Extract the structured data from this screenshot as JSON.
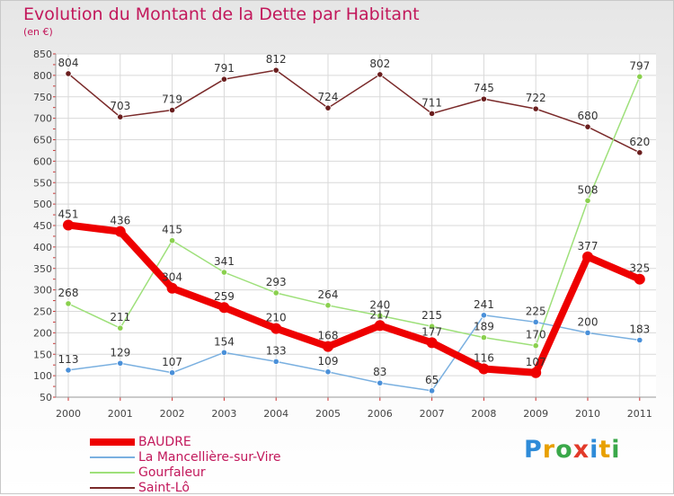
{
  "title": "Evolution du Montant de la Dette par Habitant",
  "subtitle": "(en €)",
  "logo": {
    "text": "Proxiti",
    "colors": [
      "#2e8bd8",
      "#e8a000",
      "#3aa84a",
      "#e23a2a",
      "#2e8bd8",
      "#e8a000",
      "#3aa84a"
    ]
  },
  "chart_data": {
    "type": "line",
    "x": [
      "2000",
      "2001",
      "2002",
      "2003",
      "2004",
      "2005",
      "2006",
      "2007",
      "2008",
      "2009",
      "2010",
      "2011"
    ],
    "ylim": [
      50,
      850
    ],
    "yticks": [
      50,
      100,
      150,
      200,
      250,
      300,
      350,
      400,
      450,
      500,
      550,
      600,
      650,
      700,
      750,
      800,
      850
    ],
    "grid": true,
    "legend_position": "bottom-left",
    "series": [
      {
        "name": "Saint-Lô",
        "color": "#7a2a2a",
        "marker_color": "#6a1e1e",
        "width": 1.5,
        "values": [
          804,
          703,
          719,
          791,
          812,
          724,
          802,
          711,
          745,
          722,
          680,
          620
        ],
        "labels": [
          "804",
          "703",
          "719",
          "791",
          "812",
          "724",
          "802",
          "711",
          "745",
          "722",
          "680",
          "620"
        ]
      },
      {
        "name": "Gourfaleur",
        "color": "#9ee07a",
        "marker_color": "#8ad04e",
        "width": 1.5,
        "values": [
          268,
          211,
          415,
          341,
          293,
          264,
          240,
          215,
          189,
          170,
          508,
          797
        ],
        "labels": [
          "268",
          "211",
          "415",
          "341",
          "293",
          "264",
          "240",
          "215",
          "189",
          "170",
          "508",
          "797"
        ]
      },
      {
        "name": "La Mancellière-sur-Vire",
        "color": "#7ab0e0",
        "marker_color": "#4a90d9",
        "width": 1.5,
        "values": [
          113,
          129,
          107,
          154,
          133,
          109,
          83,
          65,
          241,
          225,
          200,
          183
        ],
        "labels": [
          "113",
          "129",
          "107",
          "154",
          "133",
          "109",
          "83",
          "65",
          "241",
          "225",
          "200",
          "183"
        ]
      },
      {
        "name": "BAUDRE",
        "color": "#ee0000",
        "marker_color": "#ee0000",
        "width": 8,
        "values": [
          451,
          436,
          304,
          259,
          210,
          168,
          217,
          177,
          116,
          107,
          377,
          325
        ],
        "labels": [
          "451",
          "436",
          "304",
          "259",
          "210",
          "168",
          "217",
          "177",
          "116",
          "107",
          "377",
          "325"
        ]
      }
    ]
  }
}
